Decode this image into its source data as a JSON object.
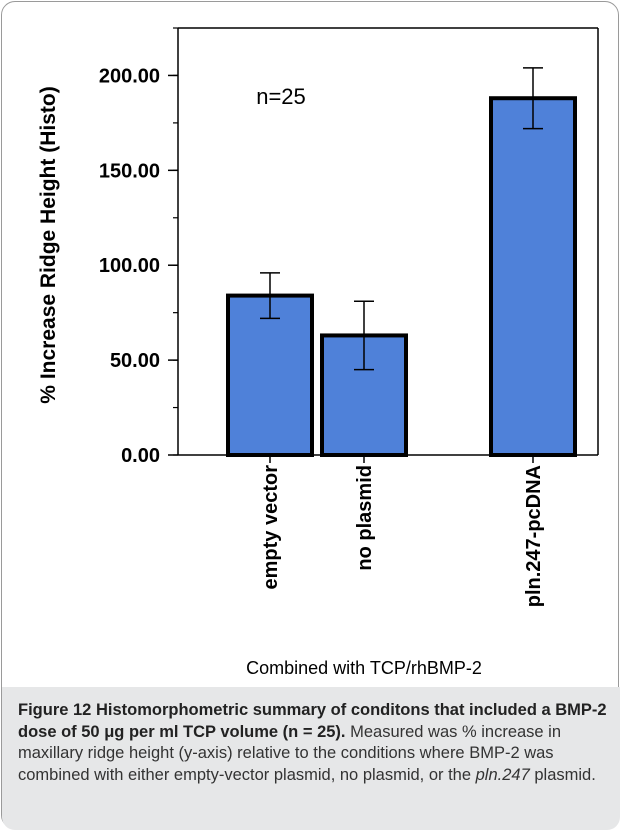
{
  "chart_data": {
    "type": "bar",
    "categories": [
      "empty vector",
      "no plasmid",
      "pln.247-pcDNA"
    ],
    "values": [
      84,
      63,
      188
    ],
    "errors": [
      12,
      18,
      16
    ],
    "ylim": [
      0,
      225
    ],
    "yticks": [
      "0.00",
      "50.00",
      "100.00",
      "150.00",
      "200.00"
    ],
    "ytick_values": [
      0,
      50,
      100,
      150,
      200
    ],
    "minor_tick_step": 25,
    "ylabel": "% Increase Ridge Height (Histo)",
    "xlabel": "Combined with TCP/rhBMP-2",
    "annotation": "n=25",
    "bar_color": "#4f81d9",
    "grid": false
  },
  "caption": {
    "title": "Figure 12 Histomorphometric summary of conditons that included a BMP-2 dose of 50 μg per ml TCP volume (n = 25).",
    "body_before": "Measured was % increase in maxillary ridge height (y-axis) relative to the conditions where BMP-2 was combined with either empty-vector plasmid, no plasmid, or the ",
    "body_italic": "pln.247",
    "body_after": " plasmid."
  }
}
